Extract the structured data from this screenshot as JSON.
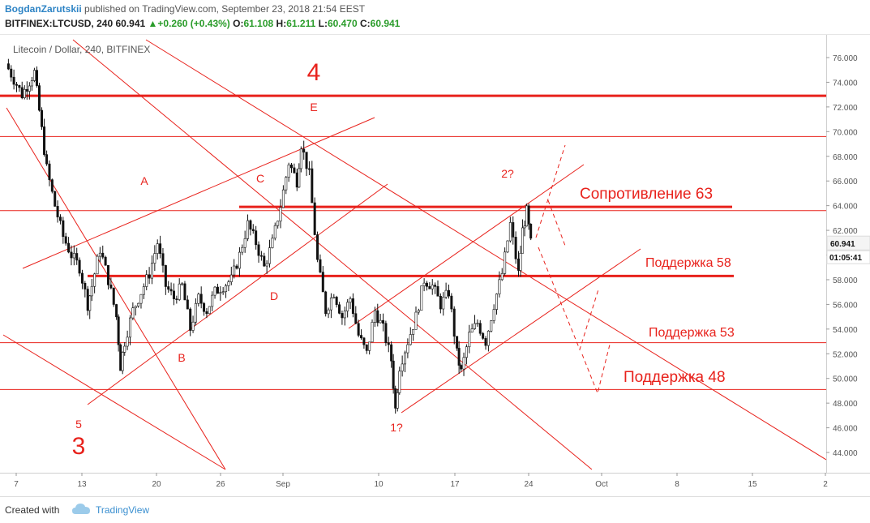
{
  "header": {
    "author": "BogdanZarutskii",
    "published": "published on TradingView.com, September 23, 2018 21:54 EEST",
    "symbol": "BITFINEX:LTCUSD, 240",
    "last": "60.941",
    "change": "+0.260 (+0.43%)",
    "open_label": "O:",
    "open": "61.108",
    "high_label": "H:",
    "high": "61.211",
    "low_label": "L:",
    "low": "60.470",
    "close_label": "C:",
    "close": "60.941"
  },
  "chart_data": {
    "type": "candlestick",
    "title": "Litecoin / Dollar, 240, BITFINEX",
    "x_ticks": [
      "7",
      "13",
      "20",
      "26",
      "Sep",
      "10",
      "17",
      "24",
      "Oct",
      "8",
      "15",
      "2"
    ],
    "y_ticks": [
      "76.000",
      "74.000",
      "72.000",
      "70.000",
      "68.000",
      "66.000",
      "64.000",
      "62.000",
      "60.000",
      "58.000",
      "56.000",
      "54.000",
      "52.000",
      "50.000",
      "48.000",
      "46.000",
      "44.000"
    ],
    "ylim": [
      42.9,
      77.3
    ],
    "price_label": "60.941",
    "countdown_label": "01:05:41",
    "price_path": [
      [
        0,
        75.5
      ],
      [
        4,
        73.0
      ],
      [
        7,
        74.8
      ],
      [
        10,
        67.0
      ],
      [
        12,
        64.0
      ],
      [
        14,
        61.5
      ],
      [
        16,
        60.0
      ],
      [
        18,
        59.0
      ],
      [
        20,
        56.0
      ],
      [
        21,
        57.5
      ],
      [
        23,
        60.5
      ],
      [
        25,
        58.0
      ],
      [
        27,
        55.0
      ],
      [
        28,
        51.0
      ],
      [
        29,
        53.0
      ],
      [
        31,
        55.5
      ],
      [
        33,
        57.0
      ],
      [
        35,
        58.5
      ],
      [
        37,
        61.0
      ],
      [
        39,
        57.5
      ],
      [
        41,
        56.5
      ],
      [
        43,
        57.5
      ],
      [
        45,
        54.0
      ],
      [
        47,
        56.5
      ],
      [
        49,
        55.5
      ],
      [
        51,
        57.0
      ],
      [
        53,
        57.5
      ],
      [
        55,
        58.0
      ],
      [
        57,
        60.0
      ],
      [
        59,
        62.5
      ],
      [
        61,
        61.0
      ],
      [
        63,
        59.0
      ],
      [
        65,
        61.0
      ],
      [
        67,
        64.0
      ],
      [
        69,
        67.5
      ],
      [
        71,
        66.0
      ],
      [
        72,
        69.0
      ],
      [
        74,
        66.5
      ],
      [
        76,
        59.5
      ],
      [
        78,
        55.5
      ],
      [
        80,
        57.0
      ],
      [
        82,
        55.0
      ],
      [
        84,
        56.5
      ],
      [
        86,
        53.5
      ],
      [
        88,
        52.0
      ],
      [
        90,
        55.5
      ],
      [
        92,
        54.0
      ],
      [
        94,
        51.5
      ],
      [
        95,
        47.5
      ],
      [
        96,
        51.0
      ],
      [
        98,
        53.0
      ],
      [
        100,
        55.0
      ],
      [
        102,
        58.0
      ],
      [
        104,
        57.5
      ],
      [
        106,
        56.0
      ],
      [
        108,
        57.0
      ],
      [
        110,
        52.0
      ],
      [
        111,
        50.5
      ],
      [
        113,
        53.5
      ],
      [
        115,
        54.5
      ],
      [
        117,
        53.0
      ],
      [
        119,
        56.0
      ],
      [
        121,
        58.5
      ],
      [
        123,
        62.5
      ],
      [
        125,
        58.5
      ],
      [
        126,
        62.0
      ],
      [
        127,
        63.5
      ],
      [
        128,
        60.941
      ]
    ],
    "horizontal_levels": [
      {
        "value": 72.9,
        "style": "thick"
      },
      {
        "value": 69.6,
        "style": "thin"
      },
      {
        "value": 63.6,
        "style": "thin"
      },
      {
        "value": 52.9,
        "style": "thin"
      },
      {
        "value": 49.1,
        "style": "thin"
      }
    ],
    "level_segments": [
      {
        "value": 63.9,
        "label": "Сопротивление 63"
      },
      {
        "value": 58.3,
        "label": "Поддержка 58"
      }
    ],
    "level_labels": [
      "Поддержка 53",
      "Поддержка 48"
    ],
    "annotations": [
      "4",
      "E",
      "A",
      "C",
      "2?",
      "D",
      "B",
      "5",
      "3",
      "1?"
    ],
    "accent_color": "#e8221c"
  },
  "footer": {
    "created_with": "Created with",
    "brand": "TradingView"
  }
}
